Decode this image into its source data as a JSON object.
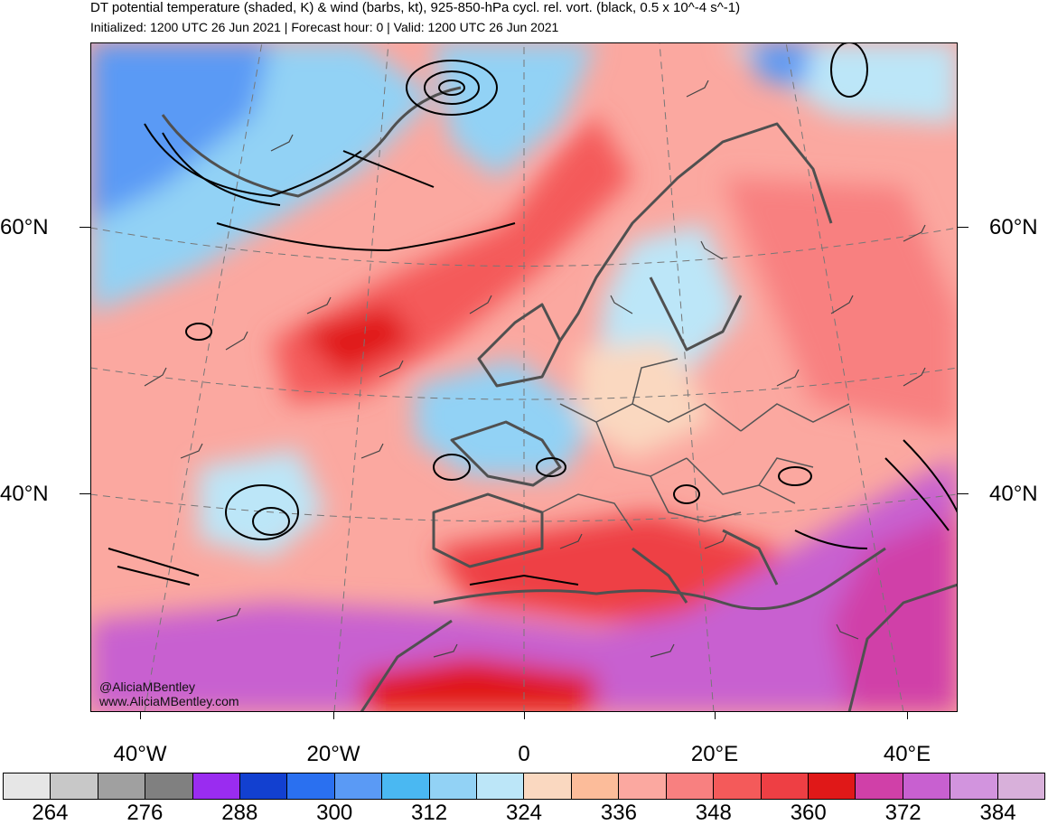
{
  "header": {
    "title": "DT potential temperature (shaded, K) & wind (barbs, kt), 925-850-hPa cycl. rel. vort. (black, 0.5 x 10^-4 s^-1)",
    "subtitle": "Initialized: 1200 UTC 26 Jun 2021 | Forecast hour: 0 | Valid: 1200 UTC 26 Jun 2021"
  },
  "map": {
    "lat_labels": {
      "top": "60°N",
      "bottom": "40°N"
    },
    "lon_labels": [
      "40°W",
      "20°W",
      "0",
      "20°E",
      "40°E"
    ],
    "credit": {
      "handle": "@AliciaMBentley",
      "website": "www.AliciaMBentley.com"
    },
    "colors": {
      "ocean_cold": "#aee0f5",
      "warm": "#f9a8a0",
      "hot": "#e83a3a",
      "very_hot": "#c85ac8",
      "coast": "#505050"
    }
  },
  "colorbar": {
    "colors": [
      "#e6e6e6",
      "#c8c8c8",
      "#a0a0a0",
      "#808080",
      "#9a2cf0",
      "#1240d0",
      "#2a70f0",
      "#5a9af5",
      "#4ab8f2",
      "#92d2f5",
      "#bce6f8",
      "#fad8c0",
      "#fcbc9a",
      "#fba8a0",
      "#f88080",
      "#f45a5a",
      "#ee3f44",
      "#e01818",
      "#d040a8",
      "#c860d0",
      "#d294de",
      "#d8b0da"
    ],
    "tick_labels": [
      "264",
      "276",
      "288",
      "300",
      "312",
      "324",
      "336",
      "348",
      "360",
      "372",
      "384"
    ]
  }
}
